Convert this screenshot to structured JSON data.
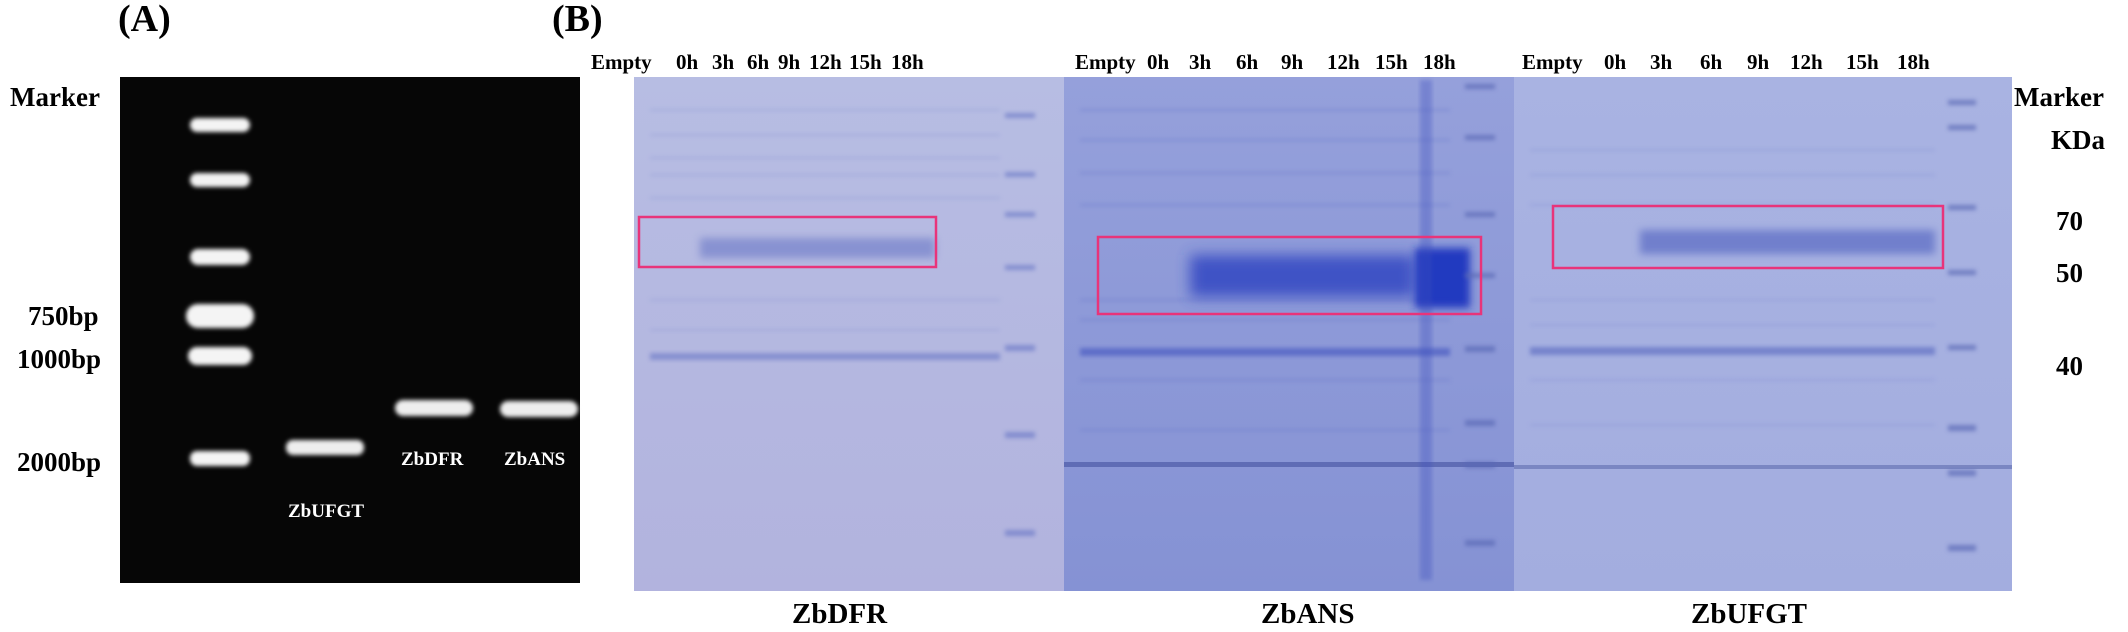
{
  "panel_a": {
    "letter": "(A)",
    "marker_label": "Marker",
    "size_labels": [
      "750bp",
      "1000bp",
      "2000bp"
    ],
    "sample_labels": [
      "ZbUFGT",
      "ZbDFR",
      "ZbANS"
    ]
  },
  "panel_b": {
    "letter": "(B)",
    "gels": [
      {
        "name": "ZbDFR",
        "lanes": [
          "Empty",
          "0h",
          "3h",
          "6h",
          "9h",
          "12h",
          "15h",
          "18h"
        ]
      },
      {
        "name": "ZbANS",
        "lanes": [
          "Empty",
          "0h",
          "3h",
          "6h",
          "9h",
          "12h",
          "15h",
          "18h"
        ]
      },
      {
        "name": "ZbUFGT",
        "lanes": [
          "Empty",
          "0h",
          "3h",
          "6h",
          "9h",
          "12h",
          "15h",
          "18h"
        ]
      }
    ],
    "marker_title": "Marker",
    "marker_unit": "KDa",
    "kda_values": [
      "70",
      "50",
      "40"
    ]
  },
  "colors": {
    "agarose_bg": "#050505",
    "dna_band": "#f2f2f2",
    "gel_dfr": "#aab1dc",
    "gel_ans": "#8e99d8",
    "gel_ufgt": "#a2acde",
    "stain": "#2b3fc4",
    "highlight_box": "#e8347a"
  }
}
